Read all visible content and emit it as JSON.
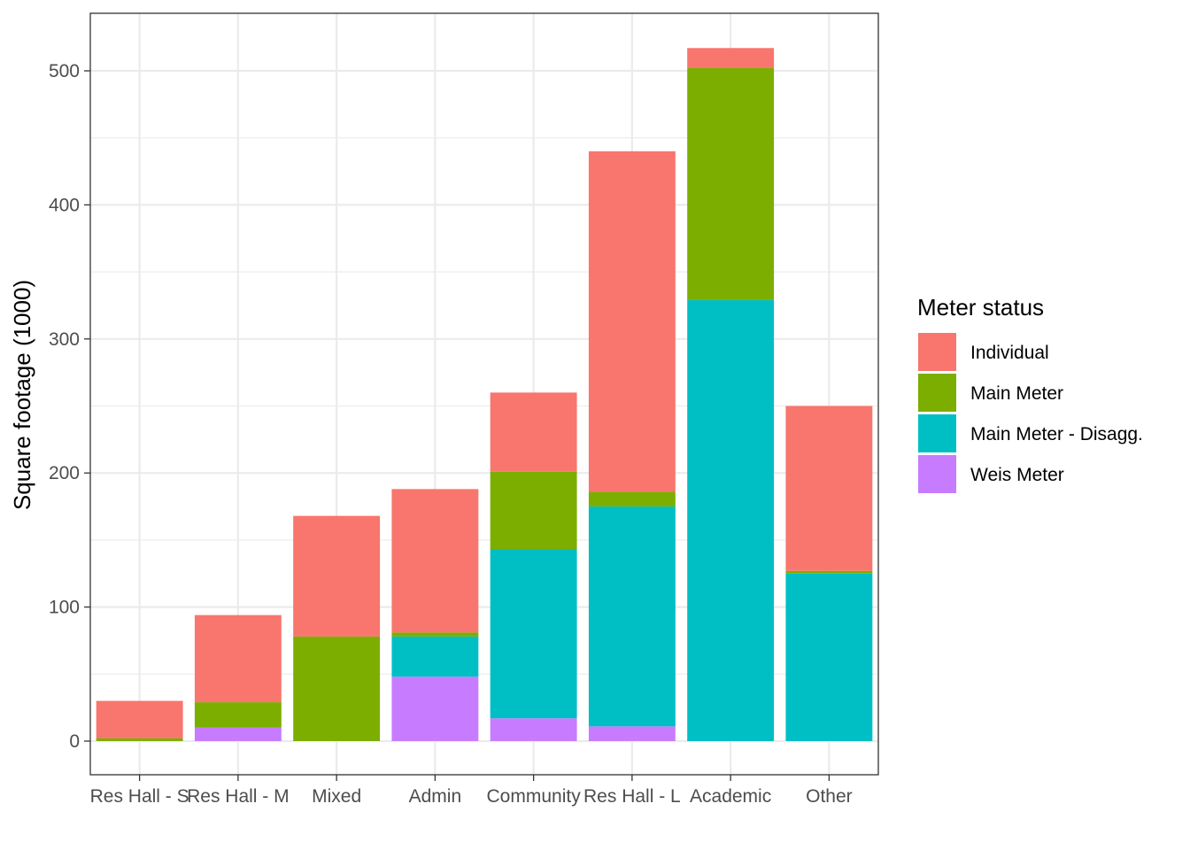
{
  "chart_data": {
    "type": "bar",
    "stacked": true,
    "title": "",
    "xlabel": "",
    "ylabel": "Square footage (1000)",
    "ylim": [
      -24,
      540
    ],
    "yticks": [
      0,
      100,
      200,
      300,
      400,
      500
    ],
    "categories": [
      "Res Hall - S",
      "Res Hall - M",
      "Mixed",
      "Admin",
      "Community",
      "Res Hall - L",
      "Academic",
      "Other"
    ],
    "series": [
      {
        "name": "Weis Meter",
        "color": "#C77CFF",
        "values": [
          0,
          10,
          0,
          48,
          17,
          11,
          0,
          0
        ]
      },
      {
        "name": "Main Meter - Disagg.",
        "color": "#00BFC4",
        "values": [
          0,
          0,
          0,
          30,
          126,
          164,
          329,
          125
        ]
      },
      {
        "name": "Main Meter",
        "color": "#7CAE00",
        "values": [
          2,
          19,
          78,
          3,
          58,
          11,
          173,
          2
        ]
      },
      {
        "name": "Individual",
        "color": "#F8766D",
        "values": [
          28,
          65,
          90,
          107,
          59,
          254,
          15,
          123
        ]
      }
    ],
    "legend": {
      "title": "Meter status",
      "position": "right",
      "order": [
        "Individual",
        "Main Meter",
        "Main Meter - Disagg.",
        "Weis Meter"
      ]
    },
    "grid": true
  }
}
